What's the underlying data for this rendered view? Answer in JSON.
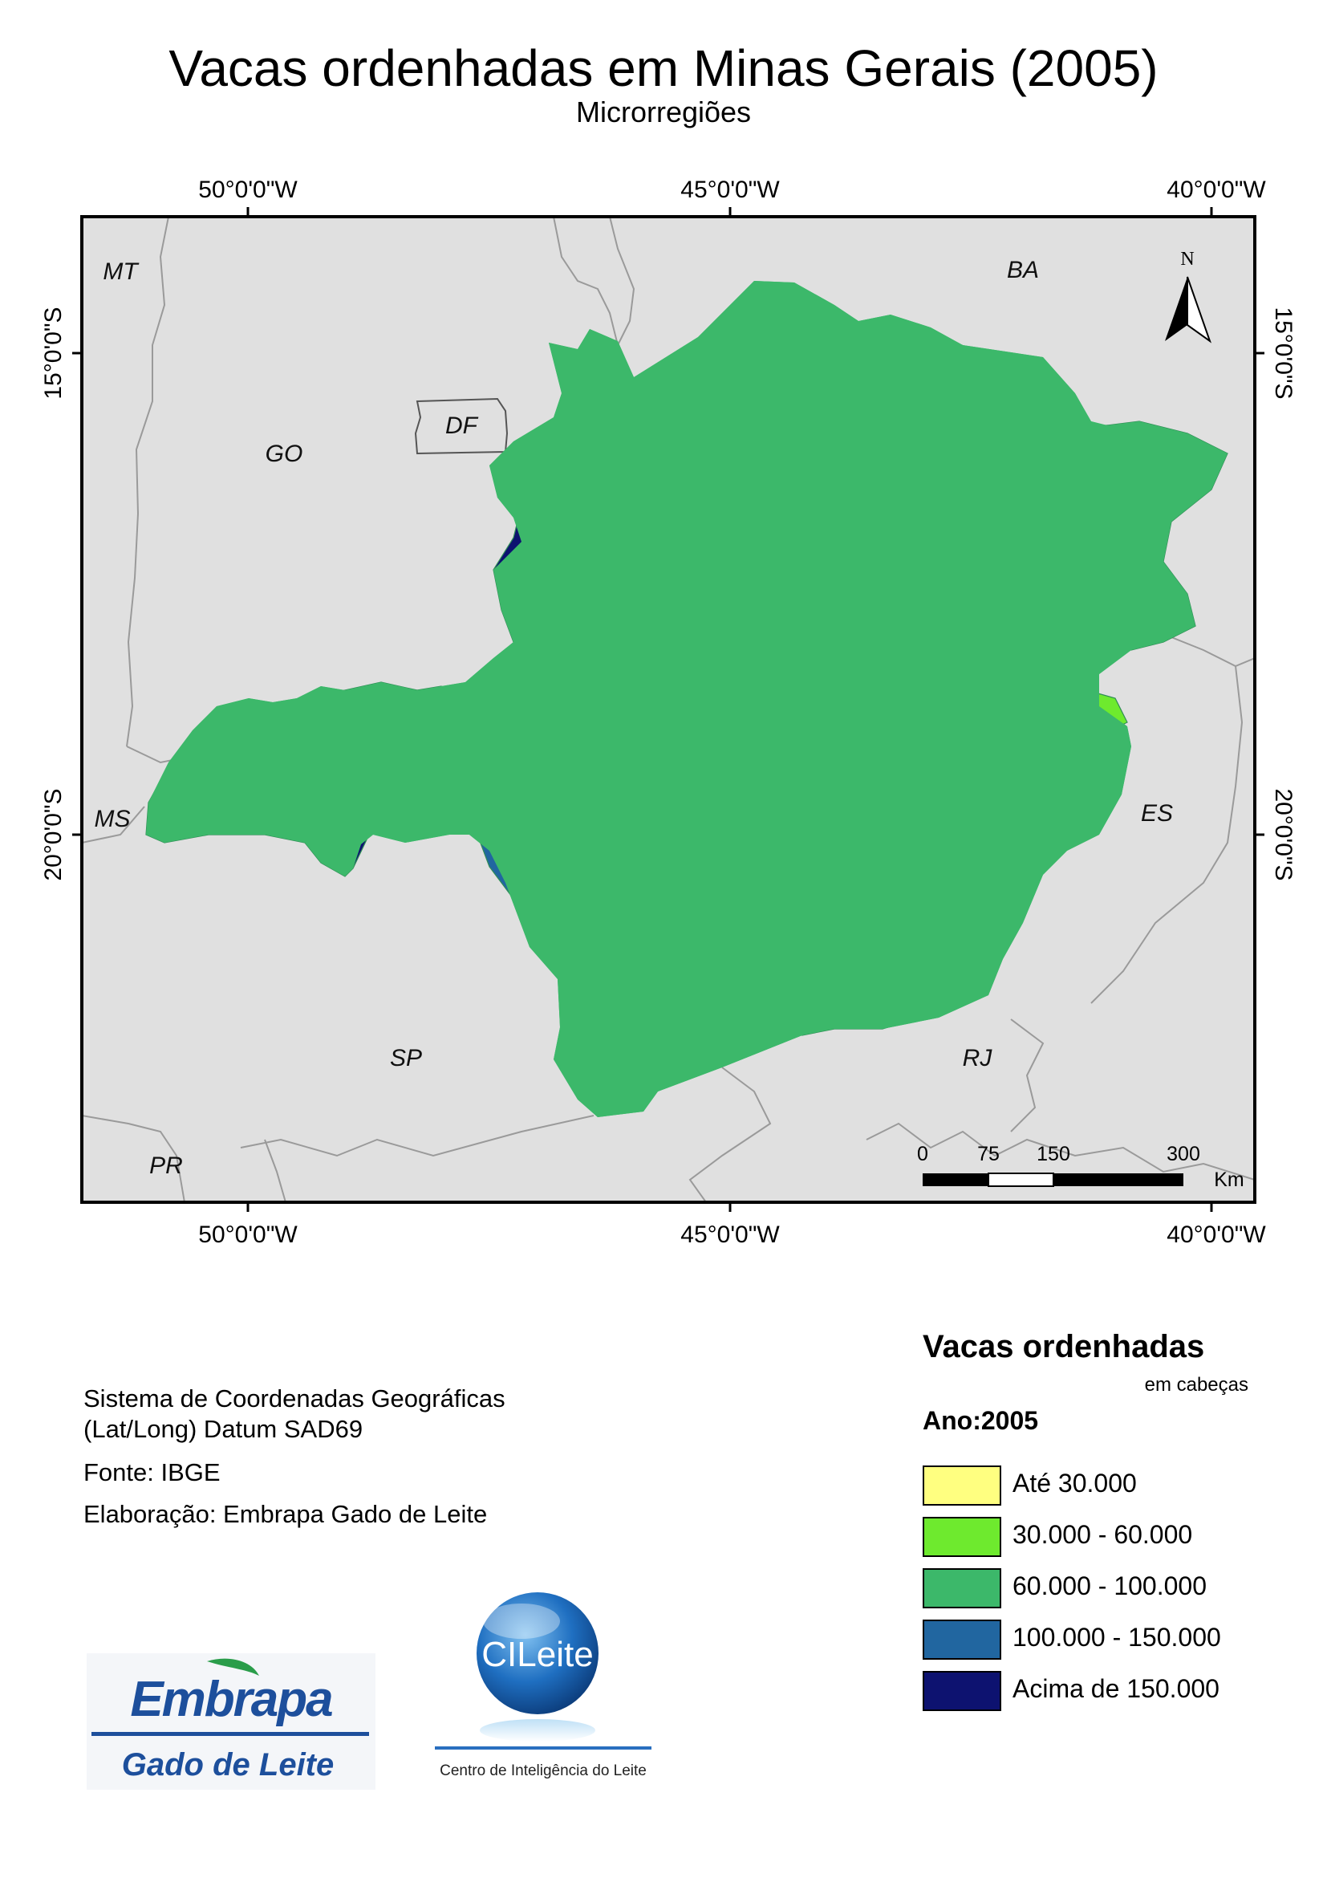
{
  "title": "Vacas ordenhadas em Minas Gerais (2005)",
  "subtitle": "Microrregiões",
  "longitude_ticks": [
    "50°0'0\"W",
    "45°0'0\"W",
    "40°0'0\"W"
  ],
  "latitude_ticks": [
    "15°0'0\"S",
    "20°0'0\"S"
  ],
  "states": [
    "MT",
    "BA",
    "GO",
    "DF",
    "MS",
    "ES",
    "SP",
    "RJ",
    "PR"
  ],
  "north_arrow": {
    "label": "N",
    "icon": "north-arrow-icon"
  },
  "scale_bar": {
    "ticks": [
      "0",
      "75",
      "150",
      "300"
    ],
    "unit": "Km"
  },
  "info": {
    "crs_line1": "Sistema de Coordenadas Geográficas",
    "crs_line2": "(Lat/Long) Datum SAD69",
    "source": "Fonte: IBGE",
    "author": "Elaboração: Embrapa Gado de Leite"
  },
  "legend": {
    "title": "Vacas ordenhadas",
    "units": "em cabeças",
    "year": "Ano:2005",
    "classes": [
      {
        "label": "Até 30.000",
        "color": "#ffff80"
      },
      {
        "label": "30.000 - 60.000",
        "color": "#6eea2e"
      },
      {
        "label": "60.000 - 100.000",
        "color": "#3cb86a"
      },
      {
        "label": "100.000 - 150.000",
        "color": "#2166a0"
      },
      {
        "label": "Acima de 150.000",
        "color": "#0d1270"
      }
    ]
  },
  "logos": {
    "embrapa_word": "Embrapa",
    "embrapa_sub": "Gado de Leite",
    "cileite_word": "CILeite",
    "cileite_sub": "Centro de Inteligência do Leite"
  },
  "colors": {
    "background_states": "#e0e0e0",
    "state_border": "#9a9a9a",
    "mg_border": "#000000"
  }
}
